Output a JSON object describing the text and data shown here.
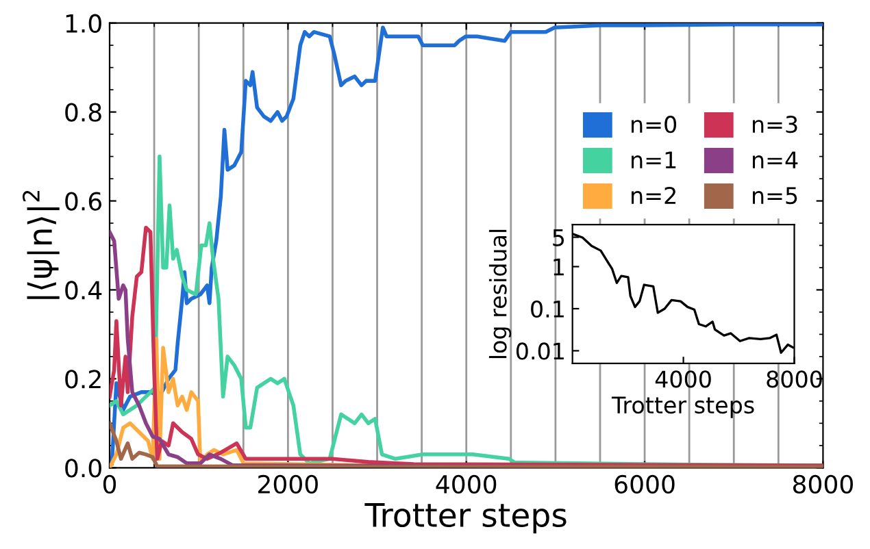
{
  "chart_data": [
    {
      "type": "line",
      "xlabel": "Trotter steps",
      "ylabel": "|⟨ψ|n⟩|$^{2}$",
      "xlim": [
        0,
        8000
      ],
      "xticks": [
        0,
        2000,
        4000,
        6000,
        8000
      ],
      "ylim": [
        0,
        1
      ],
      "yticks": [
        {
          "value": 0,
          "label": "0.0"
        },
        {
          "value": 0.2,
          "label": "0.2"
        },
        {
          "value": 0.4,
          "label": "0.4"
        },
        {
          "value": 0.6,
          "label": "0.6"
        },
        {
          "value": 0.8,
          "label": "0.8"
        },
        {
          "value": 1,
          "label": "1.0"
        }
      ],
      "grid": false,
      "legend": "center right",
      "marker": "none",
      "line_style": "solid",
      "ref_lines": [
        {
          "axis": "x",
          "value": 500,
          "color": "#9a9a9a"
        },
        {
          "axis": "x",
          "value": 1000,
          "color": "#9a9a9a"
        },
        {
          "axis": "x",
          "value": 1500,
          "color": "#9a9a9a"
        },
        {
          "axis": "x",
          "value": 2000,
          "color": "#9a9a9a"
        },
        {
          "axis": "x",
          "value": 2500,
          "color": "#9a9a9a"
        },
        {
          "axis": "x",
          "value": 3000,
          "color": "#9a9a9a"
        },
        {
          "axis": "x",
          "value": 3500,
          "color": "#9a9a9a"
        },
        {
          "axis": "x",
          "value": 4000,
          "color": "#9a9a9a"
        },
        {
          "axis": "x",
          "value": 4500,
          "color": "#9a9a9a"
        },
        {
          "axis": "x",
          "value": 5000,
          "color": "#9a9a9a"
        },
        {
          "axis": "x",
          "value": 5500,
          "color": "#9a9a9a"
        },
        {
          "axis": "x",
          "value": 6000,
          "color": "#9a9a9a"
        },
        {
          "axis": "x",
          "value": 6500,
          "color": "#9a9a9a"
        },
        {
          "axis": "x",
          "value": 7000,
          "color": "#9a9a9a"
        },
        {
          "axis": "x",
          "value": 7500,
          "color": "#9a9a9a"
        }
      ],
      "series": [
        {
          "name": "n=0",
          "color": "#1f6fd6",
          "x": [
            25,
            76,
            152,
            229,
            356,
            458,
            560,
            661,
            738,
            763,
            814,
            840,
            865,
            916,
            1018,
            1094,
            1120,
            1145,
            1196,
            1247,
            1287,
            1323,
            1399,
            1476,
            1527,
            1578,
            1603,
            1654,
            1730,
            1807,
            1883,
            1934,
            1985,
            2061,
            2138,
            2188,
            2239,
            2290,
            2468,
            2519,
            2596,
            2647,
            2748,
            2825,
            2876,
            2977,
            3028,
            3064,
            3105,
            3206,
            3359,
            3461,
            3512,
            3715,
            3868,
            3919,
            3995,
            4120,
            4430,
            4500,
            4890,
            4990,
            5500,
            6000,
            7000,
            8000
          ],
          "values": [
            0.01,
            0.19,
            0.13,
            0.16,
            0.17,
            0.17,
            0.16,
            0.2,
            0.22,
            0.28,
            0.38,
            0.44,
            0.37,
            0.38,
            0.39,
            0.41,
            0.37,
            0.45,
            0.51,
            0.61,
            0.76,
            0.67,
            0.68,
            0.71,
            0.87,
            0.86,
            0.89,
            0.81,
            0.79,
            0.78,
            0.8,
            0.78,
            0.79,
            0.83,
            0.95,
            0.98,
            0.97,
            0.98,
            0.97,
            0.93,
            0.86,
            0.87,
            0.88,
            0.86,
            0.87,
            0.87,
            0.94,
            0.99,
            0.97,
            0.97,
            0.97,
            0.97,
            0.95,
            0.95,
            0.95,
            0.96,
            0.97,
            0.97,
            0.96,
            0.98,
            0.98,
            0.99,
            0.995,
            0.995,
            0.997,
            0.997
          ]
        },
        {
          "name": "n=1",
          "color": "#44d2a0",
          "x": [
            0,
            76,
            152,
            305,
            458,
            509,
            560,
            600,
            636,
            672,
            712,
            753,
            814,
            865,
            967,
            1028,
            1079,
            1120,
            1160,
            1221,
            1272,
            1323,
            1399,
            1476,
            1527,
            1578,
            1654,
            1730,
            1807,
            1883,
            1959,
            2061,
            2138,
            2239,
            2468,
            2596,
            2748,
            2825,
            2901,
            2977,
            3054,
            3206,
            3512,
            4072,
            4480,
            4540,
            6000,
            8000
          ],
          "values": [
            0.14,
            0.15,
            0.12,
            0.14,
            0.17,
            0.18,
            0.7,
            0.45,
            0.45,
            0.59,
            0.47,
            0.49,
            0.43,
            0.4,
            0.39,
            0.5,
            0.5,
            0.55,
            0.47,
            0.38,
            0.16,
            0.25,
            0.23,
            0.2,
            0.09,
            0.09,
            0.18,
            0.19,
            0.2,
            0.19,
            0.2,
            0.14,
            0.03,
            0.01,
            0.02,
            0.12,
            0.1,
            0.12,
            0.1,
            0.11,
            0.03,
            0.02,
            0.03,
            0.03,
            0.02,
            0.012,
            0.008,
            0.005
          ]
        },
        {
          "name": "n=2",
          "color": "#ffab40",
          "x": [
            0,
            76,
            152,
            229,
            331,
            432,
            483,
            524,
            560,
            600,
            661,
            712,
            763,
            814,
            865,
            916,
            992,
            1018,
            1094,
            1170,
            1272,
            1425,
            1501,
            3000,
            8000
          ],
          "values": [
            0.0,
            0.03,
            0.09,
            0.1,
            0.08,
            0.06,
            0.02,
            0.29,
            0.02,
            0.27,
            0.17,
            0.2,
            0.14,
            0.16,
            0.13,
            0.17,
            0.15,
            0.01,
            0.03,
            0.04,
            0.03,
            0.04,
            0.01,
            0.005,
            0.0
          ]
        },
        {
          "name": "n=3",
          "color": "#cc3355",
          "x": [
            0,
            51,
            76,
            127,
            178,
            203,
            254,
            305,
            356,
            407,
            458,
            499,
            534,
            585,
            661,
            712,
            814,
            916,
            992,
            1094,
            1247,
            1425,
            1527,
            1680,
            1883,
            2138,
            2494,
            2901,
            3410,
            8000
          ],
          "values": [
            0.16,
            0.22,
            0.33,
            0.14,
            0.25,
            0.17,
            0.34,
            0.43,
            0.44,
            0.54,
            0.53,
            0.22,
            0.02,
            0.06,
            0.05,
            0.1,
            0.08,
            0.065,
            0.03,
            0.02,
            0.034,
            0.055,
            0.02,
            0.02,
            0.02,
            0.02,
            0.02,
            0.013,
            0.008,
            0.005
          ]
        },
        {
          "name": "n=4",
          "color": "#8b3f87",
          "x": [
            0,
            51,
            102,
            152,
            178,
            203,
            254,
            331,
            407,
            483,
            560,
            661,
            763,
            865,
            1018,
            1120,
            1247,
            1374,
            8000
          ],
          "values": [
            0.53,
            0.51,
            0.38,
            0.41,
            0.4,
            0.29,
            0.17,
            0.14,
            0.1,
            0.07,
            0.065,
            0.03,
            0.024,
            0.01,
            0.01,
            0.03,
            0.02,
            0.006,
            0.0
          ]
        },
        {
          "name": "n=5",
          "color": "#a0674b",
          "x": [
            0,
            76,
            127,
            203,
            254,
            331,
            407,
            483,
            534,
            8000
          ],
          "values": [
            0.1,
            0.06,
            0.02,
            0.055,
            0.02,
            0.034,
            0.03,
            0.024,
            0.003,
            0.002
          ]
        }
      ]
    },
    {
      "type": "line",
      "xlabel": "Trotter steps",
      "ylabel": "log residual",
      "log": "y",
      "xlim": [
        0,
        8000
      ],
      "xticks": [
        4000,
        8000
      ],
      "ylim": [
        0.005,
        10
      ],
      "yticks": [
        5,
        1,
        0.1,
        0.01
      ],
      "grid": false,
      "legend": false,
      "marker": "none",
      "line_style": "solid",
      "series": [
        {
          "color": "#000000",
          "x": [
            0,
            362,
            691,
            1020,
            1267,
            1432,
            1597,
            1760,
            2008,
            2090,
            2255,
            2420,
            2584,
            2914,
            3078,
            3325,
            3572,
            3900,
            4148,
            4395,
            4560,
            4806,
            5053,
            5136,
            5465,
            5712,
            6041,
            6370,
            6782,
            7111,
            7358,
            7523,
            7770,
            7950
          ],
          "values": [
            6,
            4.9,
            3.1,
            2.4,
            1.3,
            0.88,
            0.41,
            0.6,
            0.56,
            0.2,
            0.11,
            0.15,
            0.37,
            0.34,
            0.08,
            0.1,
            0.16,
            0.15,
            0.11,
            0.095,
            0.043,
            0.038,
            0.049,
            0.032,
            0.023,
            0.026,
            0.017,
            0.02,
            0.019,
            0.02,
            0.024,
            0.009,
            0.014,
            0.012
          ]
        }
      ]
    }
  ]
}
